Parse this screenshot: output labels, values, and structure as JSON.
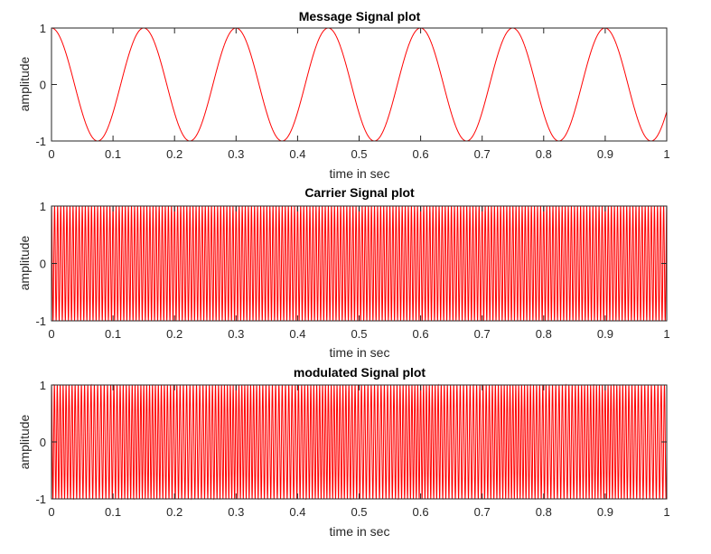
{
  "chart_data": [
    {
      "type": "line",
      "title": "Message Signal plot",
      "xlabel": "time in sec",
      "ylabel": "amplitude",
      "xlim": [
        0,
        1
      ],
      "ylim": [
        -1,
        1
      ],
      "xticks": [
        "0",
        "0.1",
        "0.2",
        "0.3",
        "0.4",
        "0.5",
        "0.6",
        "0.7",
        "0.8",
        "0.9",
        "1"
      ],
      "yticks": [
        "-1",
        "0",
        "1"
      ],
      "line_color": "#ff0000",
      "grid": false,
      "series": [
        {
          "function": "cos(2*pi*fm*t)",
          "fm_hz": 6.67
        }
      ]
    },
    {
      "type": "line",
      "title": "Carrier Signal plot",
      "xlabel": "time in sec",
      "ylabel": "amplitude",
      "xlim": [
        0,
        1
      ],
      "ylim": [
        -1,
        1
      ],
      "xticks": [
        "0",
        "0.1",
        "0.2",
        "0.3",
        "0.4",
        "0.5",
        "0.6",
        "0.7",
        "0.8",
        "0.9",
        "1"
      ],
      "yticks": [
        "-1",
        "0",
        "1"
      ],
      "line_color": "#ff0000",
      "grid": false,
      "series": [
        {
          "function": "cos(2*pi*fc*t)",
          "fc_hz": 200
        }
      ]
    },
    {
      "type": "line",
      "title": "modulated Signal plot",
      "xlabel": "time in sec",
      "ylabel": "amplitude",
      "xlim": [
        0,
        1
      ],
      "ylim": [
        -1,
        1
      ],
      "xticks": [
        "0",
        "0.1",
        "0.2",
        "0.3",
        "0.4",
        "0.5",
        "0.6",
        "0.7",
        "0.8",
        "0.9",
        "1"
      ],
      "yticks": [
        "-1",
        "0",
        "1"
      ],
      "line_color": "#ff0000",
      "grid": false,
      "series": [
        {
          "function": "cos(2*pi*fc*t + beta*sin(2*pi*fm*t))",
          "fc_hz": 200,
          "fm_hz": 6.67,
          "beta": 2
        }
      ]
    }
  ]
}
